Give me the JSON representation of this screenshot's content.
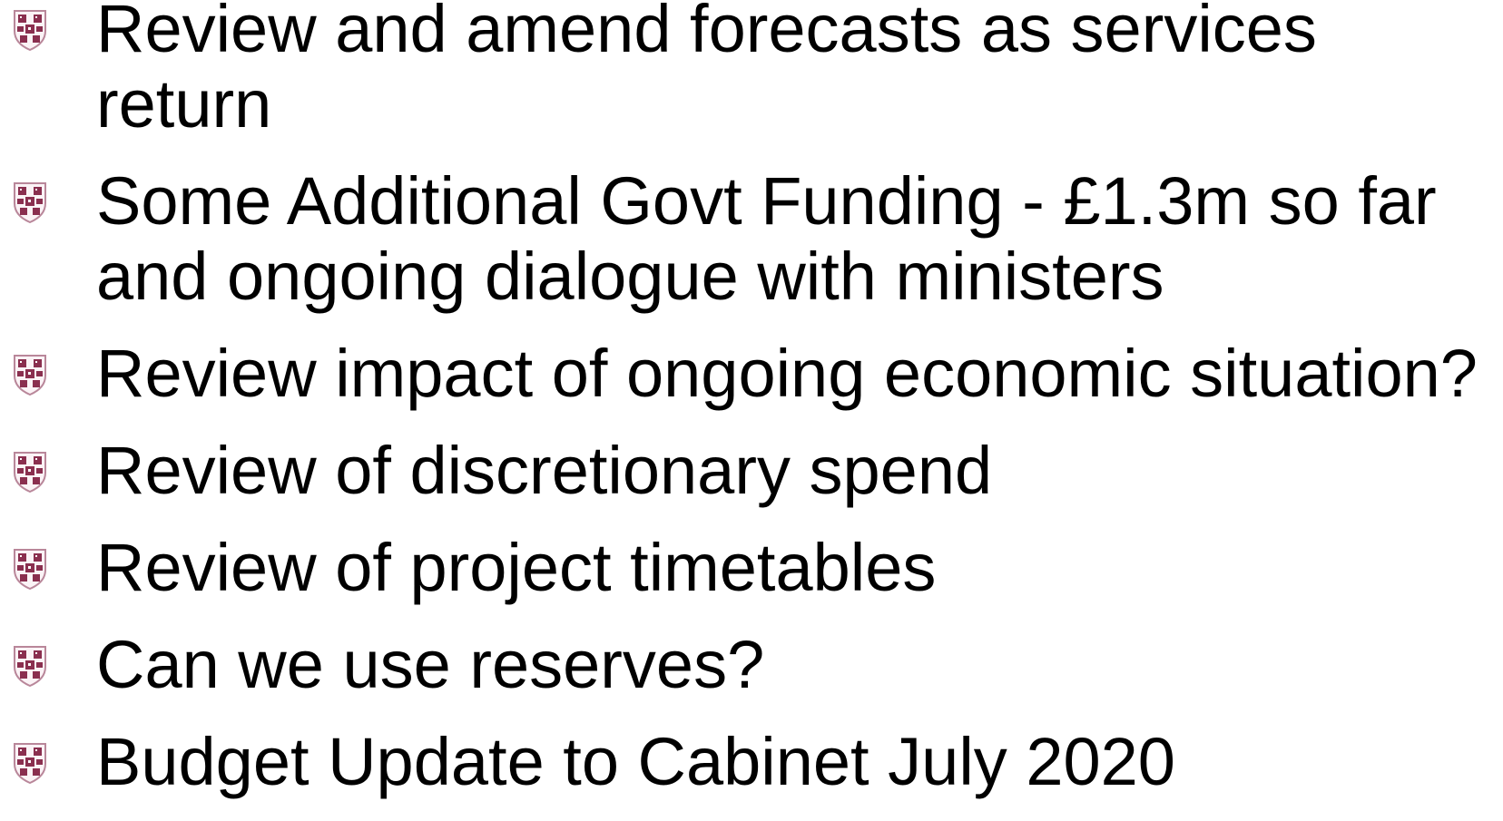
{
  "bullets": [
    "Review and amend forecasts as services return",
    "Some Additional Govt Funding - £1.3m so far and ongoing dialogue with ministers",
    "Review impact of ongoing economic situation?",
    "Review of discretionary spend",
    "Review of project timetables",
    "Can we use reserves?",
    "Budget Update to Cabinet July 2020"
  ]
}
